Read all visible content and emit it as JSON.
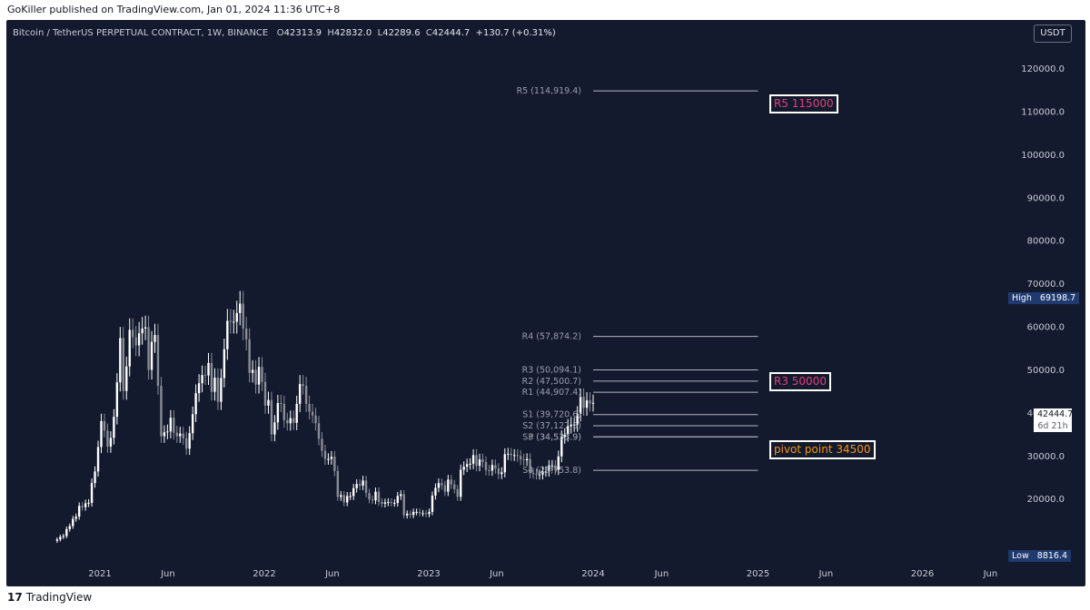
{
  "publish_line": "GoKiller published on TradingView.com, Jan 01, 2024 11:36 UTC+8",
  "legend": {
    "symbol": "Bitcoin / TetherUS PERPETUAL CONTRACT, 1W, BINANCE",
    "o_label": "O",
    "o": "42313.9",
    "h_label": "H",
    "h": "42832.0",
    "l_label": "L",
    "l": "42289.6",
    "c_label": "C",
    "c": "42444.7",
    "change": "+130.7 (+0.31%)"
  },
  "currency_button": "USDT",
  "footer_brand": "TradingView",
  "footer_logo": "17",
  "annotations": {
    "r5": "R5 115000",
    "r3": "R3 50000",
    "pivot": "pivot point 34500"
  },
  "axis_tags": {
    "high_label": "High",
    "high_value": "69198.7",
    "low_label": "Low",
    "low_value": "8816.4",
    "price": "42444.7",
    "countdown": "6d 21h"
  },
  "colors": {
    "background": "#131a2e",
    "candle_up": "#ffffff",
    "candle_down": "#8a8d96",
    "pivot_line": "#b2b5be",
    "annotation_pink": "#e0407b",
    "annotation_orange": "#f7931a"
  },
  "chart_data": {
    "type": "candlestick",
    "interval": "1W",
    "y_axis": {
      "ticks": [
        20000,
        30000,
        40000,
        50000,
        60000,
        70000,
        80000,
        90000,
        100000,
        110000,
        120000
      ],
      "tick_labels": [
        "20000.0",
        "30000.0",
        "40000.0",
        "50000.0",
        "60000.0",
        "70000.0",
        "80000.0",
        "90000.0",
        "100000.0",
        "110000.0",
        "120000.0"
      ],
      "range": [
        5700,
        125500
      ]
    },
    "x_axis": {
      "labels": [
        "2021",
        "Jun",
        "2022",
        "Jun",
        "2023",
        "Jun",
        "2024",
        "Jun",
        "2025",
        "Jun",
        "2026",
        "Jun"
      ],
      "dates": [
        "2021-01-01",
        "2021-06-01",
        "2022-01-01",
        "2022-06-01",
        "2023-01-01",
        "2023-06-01",
        "2024-01-01",
        "2024-06-01",
        "2025-01-01",
        "2025-06-01",
        "2026-01-01",
        "2026-06-01"
      ]
    },
    "pivot_levels": [
      {
        "label": "R5 (114,919.4)",
        "value": 114919.4
      },
      {
        "label": "R4 (57,874.2)",
        "value": 57874.2
      },
      {
        "label": "R3 (50,094.1)",
        "value": 50094.1
      },
      {
        "label": "R2 (47,500.7)",
        "value": 47500.7
      },
      {
        "label": "R1 (44,907.4)",
        "value": 44907.4
      },
      {
        "label": "S1 (39,720.6)",
        "value": 39720.6
      },
      {
        "label": "S2 (37,127.3)",
        "value": 37127.3
      },
      {
        "label": "P (34,533.9)",
        "value": 34533.9
      },
      {
        "label": "S3 (34,533.9)",
        "value": 34533.9
      },
      {
        "label": "S4 (26,753.8)",
        "value": 26753.8
      }
    ],
    "pivot_range_dates": [
      "2024-01-01",
      "2025-01-01"
    ],
    "high": 69198.7,
    "low": 8816.4,
    "last": 42444.7,
    "weekly_closes": [
      {
        "date": "2020-09-28",
        "v": 10700
      },
      {
        "date": "2020-10-05",
        "v": 11300
      },
      {
        "date": "2020-10-12",
        "v": 11500
      },
      {
        "date": "2020-10-19",
        "v": 13100
      },
      {
        "date": "2020-10-26",
        "v": 13800
      },
      {
        "date": "2020-11-02",
        "v": 15500
      },
      {
        "date": "2020-11-09",
        "v": 16000
      },
      {
        "date": "2020-11-16",
        "v": 18500
      },
      {
        "date": "2020-11-23",
        "v": 18200
      },
      {
        "date": "2020-11-30",
        "v": 19100
      },
      {
        "date": "2020-12-07",
        "v": 19200
      },
      {
        "date": "2020-12-14",
        "v": 23800
      },
      {
        "date": "2020-12-21",
        "v": 26500
      },
      {
        "date": "2020-12-28",
        "v": 32200
      },
      {
        "date": "2021-01-04",
        "v": 38200
      },
      {
        "date": "2021-01-11",
        "v": 36000
      },
      {
        "date": "2021-01-18",
        "v": 32300
      },
      {
        "date": "2021-01-25",
        "v": 34300
      },
      {
        "date": "2021-02-01",
        "v": 39200
      },
      {
        "date": "2021-02-08",
        "v": 47200
      },
      {
        "date": "2021-02-15",
        "v": 57500
      },
      {
        "date": "2021-02-22",
        "v": 45200
      },
      {
        "date": "2021-03-01",
        "v": 50900
      },
      {
        "date": "2021-03-08",
        "v": 59400
      },
      {
        "date": "2021-03-15",
        "v": 57700
      },
      {
        "date": "2021-03-22",
        "v": 55800
      },
      {
        "date": "2021-03-29",
        "v": 58600
      },
      {
        "date": "2021-04-05",
        "v": 59700
      },
      {
        "date": "2021-04-12",
        "v": 60000
      },
      {
        "date": "2021-04-19",
        "v": 50100
      },
      {
        "date": "2021-04-26",
        "v": 56600
      },
      {
        "date": "2021-05-03",
        "v": 58200
      },
      {
        "date": "2021-05-10",
        "v": 46400
      },
      {
        "date": "2021-05-17",
        "v": 34700
      },
      {
        "date": "2021-05-24",
        "v": 35600
      },
      {
        "date": "2021-05-31",
        "v": 35800
      },
      {
        "date": "2021-06-07",
        "v": 39000
      },
      {
        "date": "2021-06-14",
        "v": 35500
      },
      {
        "date": "2021-06-21",
        "v": 34700
      },
      {
        "date": "2021-06-28",
        "v": 35300
      },
      {
        "date": "2021-07-05",
        "v": 34200
      },
      {
        "date": "2021-07-12",
        "v": 31800
      },
      {
        "date": "2021-07-19",
        "v": 35400
      },
      {
        "date": "2021-07-26",
        "v": 39800
      },
      {
        "date": "2021-08-02",
        "v": 44700
      },
      {
        "date": "2021-08-09",
        "v": 47000
      },
      {
        "date": "2021-08-16",
        "v": 48900
      },
      {
        "date": "2021-08-23",
        "v": 48800
      },
      {
        "date": "2021-08-30",
        "v": 51700
      },
      {
        "date": "2021-09-06",
        "v": 45000
      },
      {
        "date": "2021-09-13",
        "v": 48300
      },
      {
        "date": "2021-09-20",
        "v": 42700
      },
      {
        "date": "2021-09-27",
        "v": 48200
      },
      {
        "date": "2021-10-04",
        "v": 54900
      },
      {
        "date": "2021-10-11",
        "v": 61500
      },
      {
        "date": "2021-10-18",
        "v": 61300
      },
      {
        "date": "2021-10-25",
        "v": 61300
      },
      {
        "date": "2021-11-01",
        "v": 63300
      },
      {
        "date": "2021-11-08",
        "v": 65500
      },
      {
        "date": "2021-11-15",
        "v": 59700
      },
      {
        "date": "2021-11-22",
        "v": 57200
      },
      {
        "date": "2021-11-29",
        "v": 49400
      },
      {
        "date": "2021-12-06",
        "v": 50100
      },
      {
        "date": "2021-12-13",
        "v": 46700
      },
      {
        "date": "2021-12-20",
        "v": 50800
      },
      {
        "date": "2021-12-27",
        "v": 47300
      },
      {
        "date": "2022-01-03",
        "v": 41800
      },
      {
        "date": "2022-01-10",
        "v": 43100
      },
      {
        "date": "2022-01-17",
        "v": 35100
      },
      {
        "date": "2022-01-24",
        "v": 37900
      },
      {
        "date": "2022-01-31",
        "v": 42400
      },
      {
        "date": "2022-02-07",
        "v": 42200
      },
      {
        "date": "2022-02-14",
        "v": 38400
      },
      {
        "date": "2022-02-21",
        "v": 37700
      },
      {
        "date": "2022-02-28",
        "v": 38900
      },
      {
        "date": "2022-03-07",
        "v": 37800
      },
      {
        "date": "2022-03-14",
        "v": 42200
      },
      {
        "date": "2022-03-21",
        "v": 46800
      },
      {
        "date": "2022-03-28",
        "v": 46400
      },
      {
        "date": "2022-04-04",
        "v": 42200
      },
      {
        "date": "2022-04-11",
        "v": 40400
      },
      {
        "date": "2022-04-18",
        "v": 39500
      },
      {
        "date": "2022-04-25",
        "v": 37700
      },
      {
        "date": "2022-05-02",
        "v": 34100
      },
      {
        "date": "2022-05-09",
        "v": 31300
      },
      {
        "date": "2022-05-16",
        "v": 29400
      },
      {
        "date": "2022-05-23",
        "v": 29400
      },
      {
        "date": "2022-05-30",
        "v": 29900
      },
      {
        "date": "2022-06-06",
        "v": 26600
      },
      {
        "date": "2022-06-13",
        "v": 20600
      },
      {
        "date": "2022-06-20",
        "v": 21000
      },
      {
        "date": "2022-06-27",
        "v": 19300
      },
      {
        "date": "2022-07-04",
        "v": 20800
      },
      {
        "date": "2022-07-11",
        "v": 20800
      },
      {
        "date": "2022-07-18",
        "v": 22600
      },
      {
        "date": "2022-07-25",
        "v": 23600
      },
      {
        "date": "2022-08-01",
        "v": 23200
      },
      {
        "date": "2022-08-08",
        "v": 24400
      },
      {
        "date": "2022-08-15",
        "v": 21500
      },
      {
        "date": "2022-08-22",
        "v": 20000
      },
      {
        "date": "2022-08-29",
        "v": 19800
      },
      {
        "date": "2022-09-05",
        "v": 21800
      },
      {
        "date": "2022-09-12",
        "v": 19400
      },
      {
        "date": "2022-09-19",
        "v": 19000
      },
      {
        "date": "2022-09-26",
        "v": 19300
      },
      {
        "date": "2022-10-03",
        "v": 19400
      },
      {
        "date": "2022-10-10",
        "v": 19200
      },
      {
        "date": "2022-10-17",
        "v": 19200
      },
      {
        "date": "2022-10-24",
        "v": 20800
      },
      {
        "date": "2022-10-31",
        "v": 21200
      },
      {
        "date": "2022-11-07",
        "v": 16300
      },
      {
        "date": "2022-11-14",
        "v": 16700
      },
      {
        "date": "2022-11-21",
        "v": 16400
      },
      {
        "date": "2022-11-28",
        "v": 17100
      },
      {
        "date": "2022-12-05",
        "v": 17100
      },
      {
        "date": "2022-12-12",
        "v": 16800
      },
      {
        "date": "2022-12-19",
        "v": 16800
      },
      {
        "date": "2022-12-26",
        "v": 16600
      },
      {
        "date": "2023-01-02",
        "v": 17100
      },
      {
        "date": "2023-01-09",
        "v": 20900
      },
      {
        "date": "2023-01-16",
        "v": 22700
      },
      {
        "date": "2023-01-23",
        "v": 23800
      },
      {
        "date": "2023-01-30",
        "v": 23300
      },
      {
        "date": "2023-02-06",
        "v": 21800
      },
      {
        "date": "2023-02-13",
        "v": 24600
      },
      {
        "date": "2023-02-20",
        "v": 23500
      },
      {
        "date": "2023-02-27",
        "v": 22400
      },
      {
        "date": "2023-03-06",
        "v": 20600
      },
      {
        "date": "2023-03-13",
        "v": 26900
      },
      {
        "date": "2023-03-20",
        "v": 27600
      },
      {
        "date": "2023-03-27",
        "v": 28200
      },
      {
        "date": "2023-04-03",
        "v": 28300
      },
      {
        "date": "2023-04-10",
        "v": 30300
      },
      {
        "date": "2023-04-17",
        "v": 27800
      },
      {
        "date": "2023-04-24",
        "v": 29300
      },
      {
        "date": "2023-05-01",
        "v": 28700
      },
      {
        "date": "2023-05-08",
        "v": 26800
      },
      {
        "date": "2023-05-15",
        "v": 26700
      },
      {
        "date": "2023-05-22",
        "v": 28000
      },
      {
        "date": "2023-05-29",
        "v": 27200
      },
      {
        "date": "2023-06-05",
        "v": 25900
      },
      {
        "date": "2023-06-12",
        "v": 26300
      },
      {
        "date": "2023-06-19",
        "v": 30500
      },
      {
        "date": "2023-06-26",
        "v": 30600
      },
      {
        "date": "2023-07-03",
        "v": 30300
      },
      {
        "date": "2023-07-10",
        "v": 30300
      },
      {
        "date": "2023-07-17",
        "v": 30100
      },
      {
        "date": "2023-07-24",
        "v": 29300
      },
      {
        "date": "2023-07-31",
        "v": 29100
      },
      {
        "date": "2023-08-07",
        "v": 29400
      },
      {
        "date": "2023-08-14",
        "v": 26100
      },
      {
        "date": "2023-08-21",
        "v": 26000
      },
      {
        "date": "2023-08-28",
        "v": 25800
      },
      {
        "date": "2023-09-04",
        "v": 25800
      },
      {
        "date": "2023-09-11",
        "v": 26500
      },
      {
        "date": "2023-09-18",
        "v": 26500
      },
      {
        "date": "2023-09-25",
        "v": 27900
      },
      {
        "date": "2023-10-02",
        "v": 27900
      },
      {
        "date": "2023-10-09",
        "v": 26900
      },
      {
        "date": "2023-10-16",
        "v": 30000
      },
      {
        "date": "2023-10-23",
        "v": 34500
      },
      {
        "date": "2023-10-30",
        "v": 35000
      },
      {
        "date": "2023-11-06",
        "v": 37000
      },
      {
        "date": "2023-11-13",
        "v": 37400
      },
      {
        "date": "2023-11-20",
        "v": 37400
      },
      {
        "date": "2023-11-27",
        "v": 39900
      },
      {
        "date": "2023-12-04",
        "v": 43800
      },
      {
        "date": "2023-12-11",
        "v": 41300
      },
      {
        "date": "2023-12-18",
        "v": 43000
      },
      {
        "date": "2023-12-25",
        "v": 42313.9
      },
      {
        "date": "2024-01-01",
        "v": 42444.7
      }
    ]
  }
}
